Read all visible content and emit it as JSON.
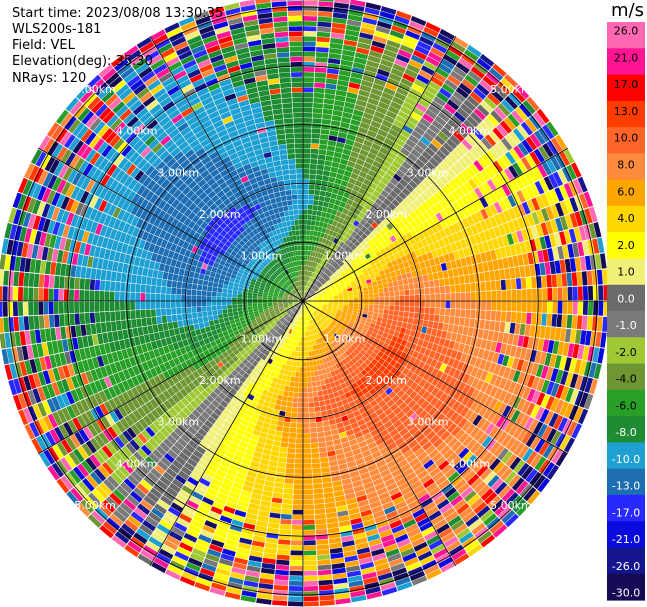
{
  "header": {
    "start_time": "Start time: 2023/08/08 13:30:35",
    "instrument": "WLS200s-181",
    "field": "Field: VEL",
    "elevation": "Elevation(deg): 35.30",
    "nrays": "NRays: 120"
  },
  "chart_data": {
    "type": "heatmap",
    "projection": "polar-ppi",
    "range_rings_km": [
      1,
      2,
      3,
      4,
      5
    ],
    "ring_labels": [
      "1.00km",
      "2.00km",
      "3.00km",
      "4.00km",
      "5.00km"
    ],
    "n_rays": 120,
    "n_gates": 60,
    "max_range_km": 5.2,
    "colorbar": {
      "unit": "m/s",
      "ticks": [
        "26.0",
        "21.0",
        "17.0",
        "13.0",
        "10.0",
        "8.0",
        "6.0",
        "4.0",
        "2.0",
        "1.0",
        "0.0",
        "-1.0",
        "-2.0",
        "-4.0",
        "-6.0",
        "-8.0",
        "-10.0",
        "-13.0",
        "-17.0",
        "-21.0",
        "-26.0",
        "-30.0"
      ],
      "bounds": [
        -30,
        -26,
        -21,
        -17,
        -13,
        -10,
        -8,
        -6,
        -4,
        -2,
        -1,
        0,
        1,
        2,
        4,
        6,
        8,
        10,
        13,
        17,
        21,
        26,
        30
      ],
      "colors": [
        "#140a55",
        "#14148c",
        "#0a0adc",
        "#2828ff",
        "#1e6eb4",
        "#1ea0d2",
        "#1e8c32",
        "#28a028",
        "#6e9632",
        "#a0c832",
        "#7a7a7a",
        "#6b6b6b",
        "#f0f078",
        "#ffff00",
        "#ffd700",
        "#ffa500",
        "#ff8c3c",
        "#ff6428",
        "#ff3c00",
        "#ff0000",
        "#ff1493",
        "#ff69b4"
      ]
    }
  }
}
